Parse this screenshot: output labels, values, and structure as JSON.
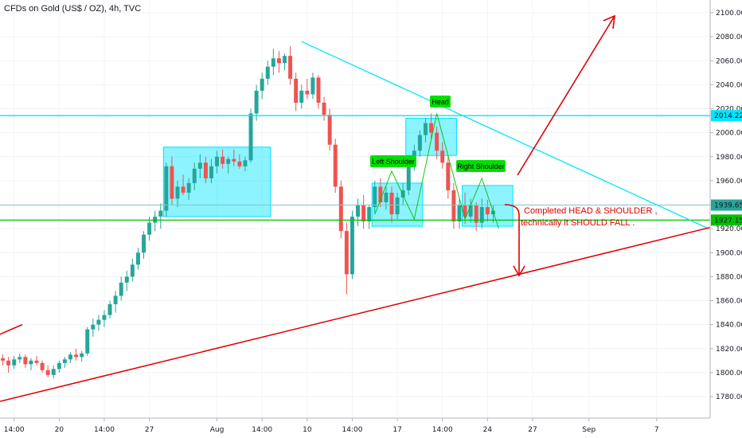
{
  "chart_data": {
    "type": "candlestick",
    "title": "CFDs on Gold (US$ / OZ), 4h, TVC",
    "colors": {
      "up": "#26a69a",
      "down": "#ef5350",
      "box_fill": "#00e5ff",
      "resistance": "#00e5ff",
      "support": "#00c000",
      "trend_up": "#e00000",
      "label_bg": "#00e000"
    },
    "price_axis": {
      "ticks": [
        "2100.00",
        "2080.00",
        "2060.00",
        "2040.00",
        "2020.00",
        "2000.00",
        "1980.00",
        "1960.00",
        "1940.00",
        "1920.00",
        "1900.00",
        "1880.00",
        "1860.00",
        "1840.00",
        "1820.00",
        "1800.00",
        "1780.00"
      ],
      "ylim": [
        1768,
        2110
      ]
    },
    "time_axis": {
      "ticks": [
        "14:00",
        "20",
        "14:00",
        "27",
        "Aug",
        "14:00",
        "10",
        "14:00",
        "17",
        "14:00",
        "24",
        "27",
        "Sep",
        "7"
      ],
      "tick_bars": [
        2,
        10,
        18,
        26,
        38,
        46,
        54,
        62,
        70,
        78,
        86,
        94,
        104,
        116
      ]
    },
    "bar_count": 126,
    "candles": [
      [
        1812,
        1815,
        1806,
        1810
      ],
      [
        1810,
        1813,
        1800,
        1806
      ],
      [
        1806,
        1814,
        1803,
        1811
      ],
      [
        1811,
        1816,
        1808,
        1813
      ],
      [
        1813,
        1815,
        1804,
        1807
      ],
      [
        1807,
        1812,
        1802,
        1810
      ],
      [
        1810,
        1814,
        1806,
        1808
      ],
      [
        1808,
        1810,
        1800,
        1802
      ],
      [
        1802,
        1806,
        1796,
        1798
      ],
      [
        1798,
        1806,
        1795,
        1803
      ],
      [
        1803,
        1810,
        1800,
        1808
      ],
      [
        1808,
        1813,
        1804,
        1811
      ],
      [
        1811,
        1817,
        1808,
        1815
      ],
      [
        1815,
        1820,
        1810,
        1813
      ],
      [
        1813,
        1818,
        1809,
        1816
      ],
      [
        1816,
        1838,
        1814,
        1836
      ],
      [
        1836,
        1845,
        1830,
        1840
      ],
      [
        1840,
        1848,
        1835,
        1844
      ],
      [
        1844,
        1852,
        1838,
        1848
      ],
      [
        1848,
        1860,
        1845,
        1857
      ],
      [
        1857,
        1868,
        1850,
        1864
      ],
      [
        1864,
        1880,
        1860,
        1875
      ],
      [
        1875,
        1885,
        1868,
        1880
      ],
      [
        1880,
        1895,
        1876,
        1890
      ],
      [
        1890,
        1904,
        1886,
        1900
      ],
      [
        1900,
        1918,
        1895,
        1915
      ],
      [
        1915,
        1930,
        1910,
        1925
      ],
      [
        1925,
        1935,
        1918,
        1930
      ],
      [
        1930,
        1941,
        1920,
        1935
      ],
      [
        1935,
        1975,
        1930,
        1972
      ],
      [
        1972,
        1980,
        1940,
        1945
      ],
      [
        1945,
        1960,
        1938,
        1955
      ],
      [
        1955,
        1965,
        1948,
        1950
      ],
      [
        1950,
        1962,
        1944,
        1958
      ],
      [
        1958,
        1975,
        1952,
        1970
      ],
      [
        1970,
        1982,
        1962,
        1975
      ],
      [
        1975,
        1980,
        1958,
        1962
      ],
      [
        1962,
        1978,
        1958,
        1972
      ],
      [
        1972,
        1985,
        1966,
        1980
      ],
      [
        1980,
        1986,
        1970,
        1974
      ],
      [
        1974,
        1980,
        1966,
        1978
      ],
      [
        1978,
        1986,
        1972,
        1976
      ],
      [
        1976,
        1982,
        1970,
        1972
      ],
      [
        1972,
        1980,
        1968,
        1977
      ],
      [
        1977,
        2020,
        1975,
        2016
      ],
      [
        2016,
        2040,
        2010,
        2035
      ],
      [
        2035,
        2050,
        2028,
        2045
      ],
      [
        2045,
        2060,
        2040,
        2055
      ],
      [
        2055,
        2070,
        2048,
        2062
      ],
      [
        2062,
        2068,
        2050,
        2058
      ],
      [
        2058,
        2066,
        2052,
        2064
      ],
      [
        2064,
        2072,
        2040,
        2045
      ],
      [
        2045,
        2050,
        2018,
        2025
      ],
      [
        2025,
        2040,
        2020,
        2035
      ],
      [
        2035,
        2045,
        2028,
        2032
      ],
      [
        2032,
        2050,
        2028,
        2046
      ],
      [
        2046,
        2048,
        2020,
        2025
      ],
      [
        2025,
        2030,
        2010,
        2015
      ],
      [
        2015,
        2020,
        1985,
        1990
      ],
      [
        1990,
        1995,
        1950,
        1955
      ],
      [
        1955,
        1960,
        1912,
        1918
      ],
      [
        1918,
        1925,
        1865,
        1882
      ],
      [
        1882,
        1935,
        1878,
        1930
      ],
      [
        1930,
        1945,
        1922,
        1940
      ],
      [
        1940,
        1948,
        1920,
        1926
      ],
      [
        1926,
        1940,
        1920,
        1938
      ],
      [
        1938,
        1960,
        1932,
        1955
      ],
      [
        1955,
        1962,
        1938,
        1942
      ],
      [
        1942,
        1955,
        1936,
        1950
      ],
      [
        1950,
        1955,
        1925,
        1932
      ],
      [
        1932,
        1950,
        1928,
        1946
      ],
      [
        1946,
        1958,
        1940,
        1952
      ],
      [
        1952,
        1975,
        1948,
        1972
      ],
      [
        1972,
        1990,
        1968,
        1985
      ],
      [
        1985,
        2002,
        1980,
        1998
      ],
      [
        1998,
        2012,
        1992,
        2008
      ],
      [
        2008,
        2016,
        1995,
        2000
      ],
      [
        2000,
        2005,
        1978,
        1985
      ],
      [
        1985,
        1992,
        1970,
        1975
      ],
      [
        1975,
        1980,
        1945,
        1952
      ],
      [
        1952,
        1958,
        1920,
        1926
      ],
      [
        1926,
        1945,
        1920,
        1940
      ],
      [
        1940,
        1950,
        1924,
        1930
      ],
      [
        1930,
        1945,
        1925,
        1940
      ],
      [
        1940,
        1942,
        1918,
        1925
      ],
      [
        1925,
        1945,
        1920,
        1938
      ],
      [
        1938,
        1944,
        1926,
        1932
      ],
      [
        1932,
        1940,
        1925,
        1935
      ]
    ],
    "annotations": {
      "resistance_price": 2014.22,
      "resistance_label": "2014.22",
      "last_price": 1939.65,
      "last_price_label": "1939.65",
      "support_price": 1927.15,
      "support_label": "1927.15",
      "label_head": "Head",
      "label_left_shoulder": "Left Shoulder",
      "label_right_shoulder": "Right Shoulder",
      "comment_line1": "Completed HEAD & SHOULDER ,",
      "comment_line2": "technically it  SHOULD  FALL ."
    }
  }
}
